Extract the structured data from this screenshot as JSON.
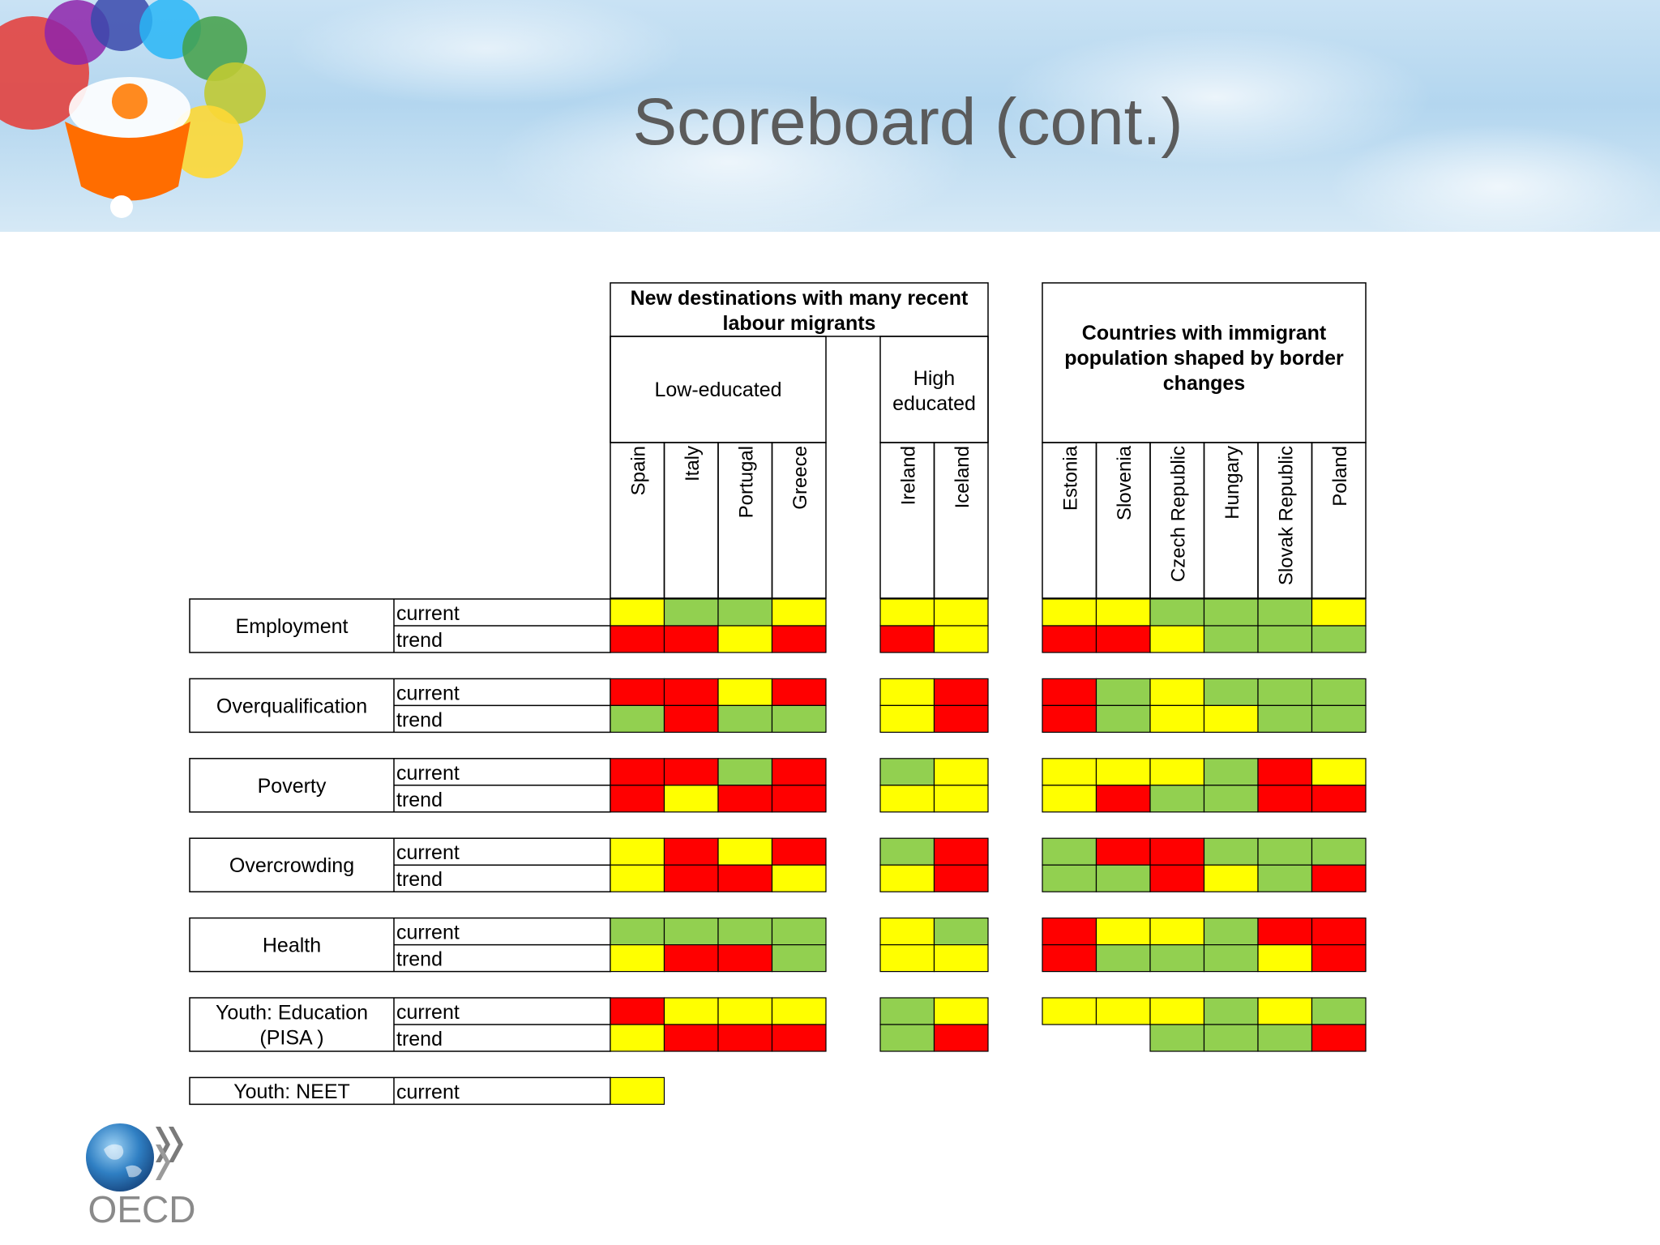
{
  "slide": {
    "title": "Scoreboard (cont.)",
    "logo_text": "OECD"
  },
  "colors": {
    "green": "#92d050",
    "yellow": "#ffff00",
    "red": "#ff0000"
  },
  "groups": [
    {
      "id": "new-destinations",
      "title_lines": [
        "New destinations with many recent",
        "labour migrants"
      ],
      "subgroups": [
        {
          "id": "low-educated",
          "label_lines": [
            "Low-educated"
          ],
          "countries": [
            "Spain",
            "Italy",
            "Portugal",
            "Greece"
          ]
        },
        {
          "id": "high-educated",
          "label_lines": [
            "High",
            "educated"
          ],
          "countries": [
            "Ireland",
            "Iceland"
          ]
        }
      ]
    },
    {
      "id": "border-changes",
      "title_lines": [
        "Countries with immigrant",
        "population shaped by border",
        "changes"
      ],
      "subgroups": [
        {
          "id": "border",
          "label_lines": [],
          "countries": [
            "Estonia",
            "Slovenia",
            "Czech Republic",
            "Hungary",
            "Slovak Republic",
            "Poland"
          ]
        }
      ]
    }
  ],
  "indicators": [
    {
      "label_lines": [
        "Employment"
      ],
      "rows": [
        {
          "label": "current",
          "cells": [
            "yellow",
            "green",
            "green",
            "yellow",
            "yellow",
            "yellow",
            "yellow",
            "yellow",
            "green",
            "green",
            "green",
            "yellow"
          ]
        },
        {
          "label": "trend",
          "cells": [
            "red",
            "red",
            "yellow",
            "red",
            "red",
            "yellow",
            "red",
            "red",
            "yellow",
            "green",
            "green",
            "green"
          ]
        }
      ]
    },
    {
      "label_lines": [
        "Overqualification"
      ],
      "rows": [
        {
          "label": "current",
          "cells": [
            "red",
            "red",
            "yellow",
            "red",
            "yellow",
            "red",
            "red",
            "green",
            "yellow",
            "green",
            "green",
            "green"
          ]
        },
        {
          "label": "trend",
          "cells": [
            "green",
            "red",
            "green",
            "green",
            "yellow",
            "red",
            "red",
            "green",
            "yellow",
            "yellow",
            "green",
            "green"
          ]
        }
      ]
    },
    {
      "label_lines": [
        "Poverty"
      ],
      "rows": [
        {
          "label": "current",
          "cells": [
            "red",
            "red",
            "green",
            "red",
            "green",
            "yellow",
            "yellow",
            "yellow",
            "yellow",
            "green",
            "red",
            "yellow"
          ]
        },
        {
          "label": "trend",
          "cells": [
            "red",
            "yellow",
            "red",
            "red",
            "yellow",
            "yellow",
            "yellow",
            "red",
            "green",
            "green",
            "red",
            "red"
          ]
        }
      ]
    },
    {
      "label_lines": [
        "Overcrowding"
      ],
      "rows": [
        {
          "label": "current",
          "cells": [
            "yellow",
            "red",
            "yellow",
            "red",
            "green",
            "red",
            "green",
            "red",
            "red",
            "green",
            "green",
            "green"
          ]
        },
        {
          "label": "trend",
          "cells": [
            "yellow",
            "red",
            "red",
            "yellow",
            "yellow",
            "red",
            "green",
            "green",
            "red",
            "yellow",
            "green",
            "red"
          ]
        }
      ]
    },
    {
      "label_lines": [
        "Health"
      ],
      "rows": [
        {
          "label": "current",
          "cells": [
            "green",
            "green",
            "green",
            "green",
            "yellow",
            "green",
            "red",
            "yellow",
            "yellow",
            "green",
            "red",
            "red"
          ]
        },
        {
          "label": "trend",
          "cells": [
            "yellow",
            "red",
            "red",
            "green",
            "yellow",
            "yellow",
            "red",
            "green",
            "green",
            "green",
            "yellow",
            "red"
          ]
        }
      ]
    },
    {
      "label_lines": [
        "Youth: Education",
        "(PISA )"
      ],
      "rows": [
        {
          "label": "current",
          "cells": [
            "red",
            "yellow",
            "yellow",
            "yellow",
            "green",
            "yellow",
            "yellow",
            "yellow",
            "yellow",
            "green",
            "yellow",
            "green"
          ]
        },
        {
          "label": "trend",
          "cells": [
            "yellow",
            "red",
            "red",
            "red",
            "green",
            "red",
            null,
            null,
            "green",
            "green",
            "green",
            "red"
          ]
        }
      ]
    },
    {
      "label_lines": [
        "Youth: NEET"
      ],
      "rows": [
        {
          "label": "current",
          "cells": [
            "yellow",
            null,
            null,
            null,
            null,
            null,
            null,
            null,
            null,
            null,
            null,
            null
          ]
        }
      ]
    }
  ]
}
